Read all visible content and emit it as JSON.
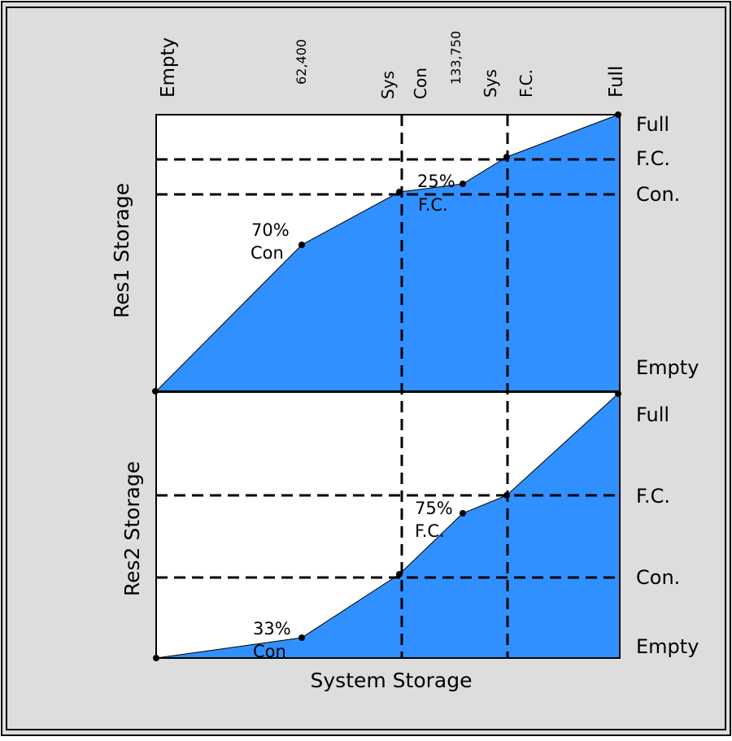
{
  "top_labels": {
    "empty": "Empty",
    "v62400": "62,400",
    "sys_con": "Sys",
    "con": "Con",
    "v133750": "133,750",
    "sys_fc": "Sys",
    "fc": "F.C.",
    "full": "Full"
  },
  "res1": {
    "axis_label": "Res1 Storage",
    "right_labels": {
      "full": "Full",
      "fc": "F.C.",
      "con": "Con.",
      "empty": "Empty"
    },
    "annot_a_pct": "70%",
    "annot_a_sub": "Con",
    "annot_b_pct": "25%",
    "annot_b_sub": "F.C."
  },
  "res2": {
    "axis_label": "Res2 Storage",
    "right_labels": {
      "full": "Full",
      "fc": "F.C.",
      "con": "Con.",
      "empty": "Empty"
    },
    "annot_a_pct": "33%",
    "annot_a_sub": "Con",
    "annot_b_pct": "75%",
    "annot_b_sub": "F.C."
  },
  "x_axis_label": "System Storage",
  "colors": {
    "fill": "#3090ff",
    "frame_bg": "#dddddd",
    "plot_bg": "#ffffff",
    "line": "#000000"
  }
}
